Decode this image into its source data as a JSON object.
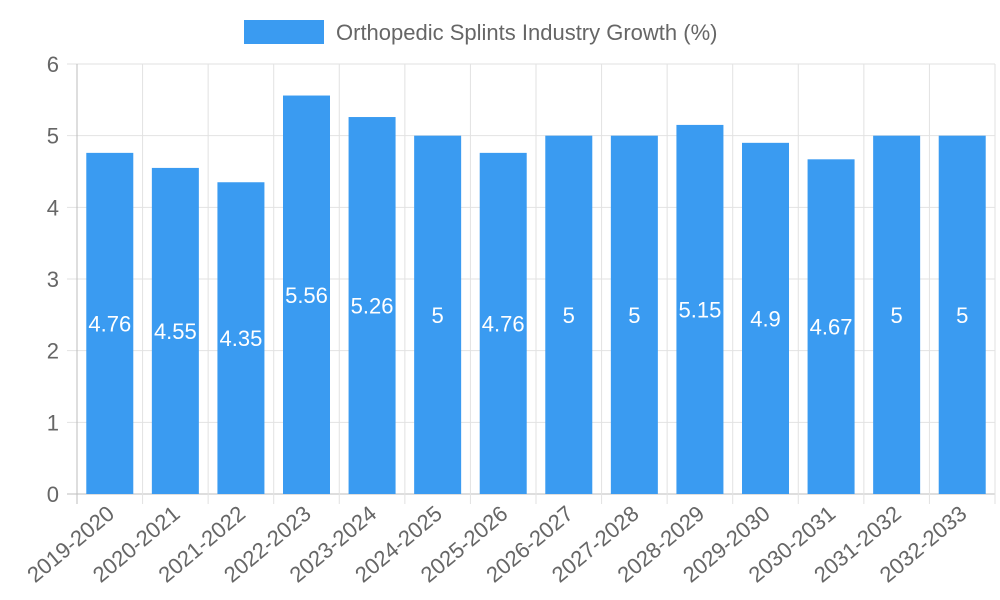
{
  "chart_data": {
    "type": "bar",
    "title": "",
    "xlabel": "",
    "ylabel": "",
    "ylim": [
      0,
      6
    ],
    "yticks": [
      "0",
      "1",
      "2",
      "3",
      "4",
      "5",
      "6"
    ],
    "grid": true,
    "legend_position": "top-center",
    "categories": [
      "2019-2020",
      "2020-2021",
      "2021-2022",
      "2022-2023",
      "2023-2024",
      "2024-2025",
      "2025-2026",
      "2026-2027",
      "2027-2028",
      "2028-2029",
      "2029-2030",
      "2030-2031",
      "2031-2032",
      "2032-2033"
    ],
    "series": [
      {
        "name": "Orthopedic Splints Industry Growth (%)",
        "color": "#3a9bf1",
        "values": [
          4.76,
          4.55,
          4.35,
          5.56,
          5.26,
          5,
          4.76,
          5,
          5,
          5.15,
          4.9,
          4.67,
          5,
          5
        ],
        "labels": [
          "4.76",
          "4.55",
          "4.35",
          "5.56",
          "5.26",
          "5",
          "4.76",
          "5",
          "5",
          "5.15",
          "4.9",
          "4.67",
          "5",
          "5"
        ]
      }
    ]
  }
}
